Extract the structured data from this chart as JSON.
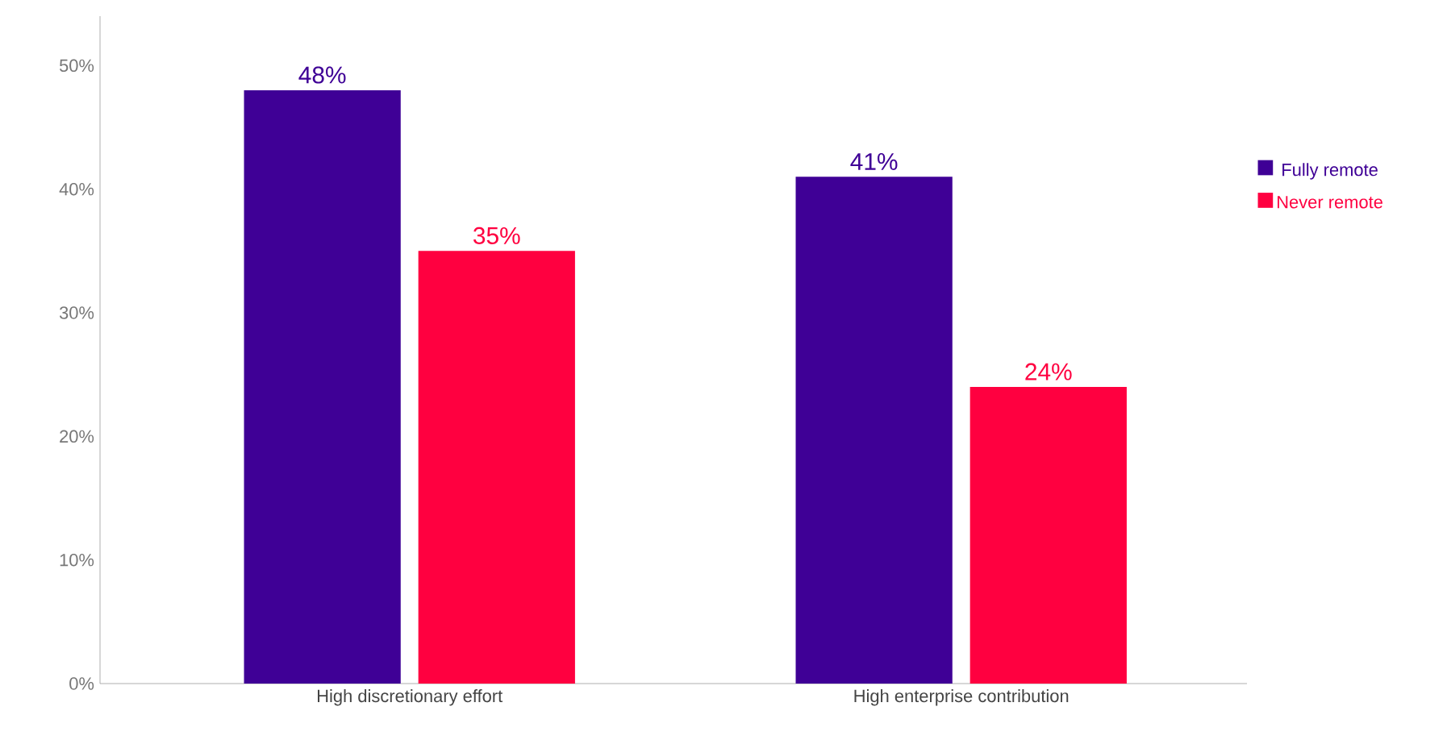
{
  "chart_data": {
    "type": "bar",
    "categories": [
      "High discretionary effort",
      "High enterprise contribution"
    ],
    "series": [
      {
        "name": "Fully remote",
        "color": "#3f0096",
        "values": [
          48,
          41
        ],
        "value_labels": [
          "48%",
          "41%"
        ]
      },
      {
        "name": "Never remote",
        "color": "#ff0040",
        "values": [
          35,
          24
        ],
        "value_labels": [
          "35%",
          "24%"
        ]
      }
    ],
    "ylim": [
      0,
      54
    ],
    "yticks": [
      {
        "value": 0,
        "label": "0%"
      },
      {
        "value": 10,
        "label": "10%"
      },
      {
        "value": 20,
        "label": "20%"
      },
      {
        "value": 30,
        "label": "30%"
      },
      {
        "value": 40,
        "label": "40%"
      },
      {
        "value": 50,
        "label": "50%"
      }
    ],
    "legend": "right",
    "grid": false
  }
}
